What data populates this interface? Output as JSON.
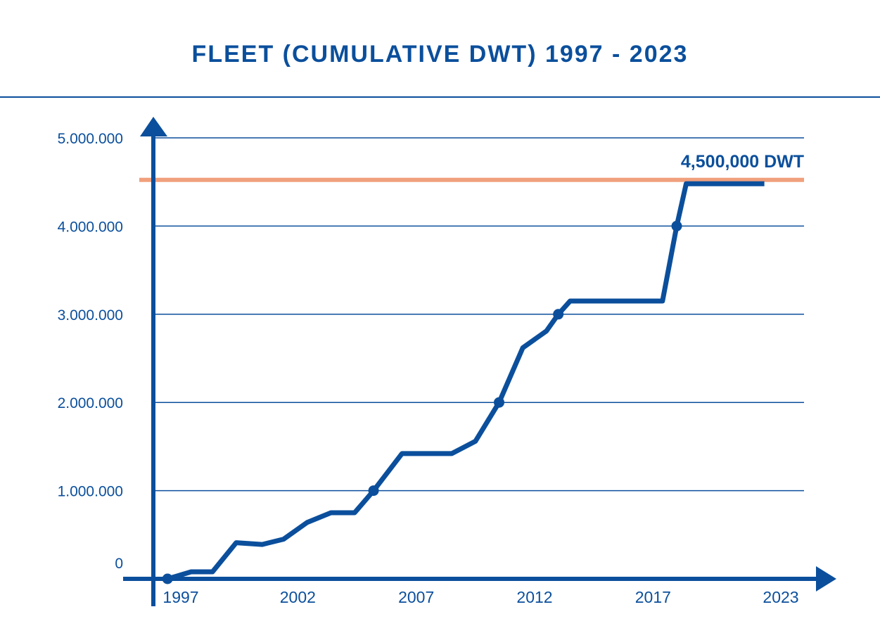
{
  "chart_data": {
    "type": "line",
    "title": "FLEET (CUMULATIVE DWT) 1997 - 2023",
    "xlabel": "",
    "ylabel": "",
    "xlim": [
      1996,
      2023
    ],
    "ylim": [
      0,
      5000000
    ],
    "y_ticks": [
      {
        "value": 0,
        "label": "0"
      },
      {
        "value": 1000000,
        "label": "1.000.000"
      },
      {
        "value": 2000000,
        "label": "2.000.000"
      },
      {
        "value": 3000000,
        "label": "3.000.000"
      },
      {
        "value": 4000000,
        "label": "4.000.000"
      },
      {
        "value": 5000000,
        "label": "5.000.000"
      }
    ],
    "x_ticks": [
      {
        "value": 1997,
        "label": "1997"
      },
      {
        "value": 2002,
        "label": "2002"
      },
      {
        "value": 2007,
        "label": "2007"
      },
      {
        "value": 2012,
        "label": "2012"
      },
      {
        "value": 2017,
        "label": "2017"
      },
      {
        "value": 2023,
        "label": "2023"
      }
    ],
    "grid": true,
    "series": [
      {
        "color": "#0b4f9c",
        "points": [
          {
            "x": 1996.5,
            "y": 0
          },
          {
            "x": 1997.5,
            "y": 80000
          },
          {
            "x": 1998.4,
            "y": 80000
          },
          {
            "x": 1999.4,
            "y": 410000
          },
          {
            "x": 2000.5,
            "y": 390000
          },
          {
            "x": 2001.4,
            "y": 450000
          },
          {
            "x": 2002.4,
            "y": 640000
          },
          {
            "x": 2003.4,
            "y": 750000
          },
          {
            "x": 2004.4,
            "y": 750000
          },
          {
            "x": 2005.2,
            "y": 1000000
          },
          {
            "x": 2006.4,
            "y": 1420000
          },
          {
            "x": 2008.5,
            "y": 1420000
          },
          {
            "x": 2009.5,
            "y": 1560000
          },
          {
            "x": 2010.5,
            "y": 2000000
          },
          {
            "x": 2011.5,
            "y": 2620000
          },
          {
            "x": 2012.5,
            "y": 2810000
          },
          {
            "x": 2013.0,
            "y": 3000000
          },
          {
            "x": 2013.5,
            "y": 3150000
          },
          {
            "x": 2017.4,
            "y": 3150000
          },
          {
            "x": 2018.0,
            "y": 4000000
          },
          {
            "x": 2018.4,
            "y": 4480000
          },
          {
            "x": 2021.7,
            "y": 4480000
          }
        ],
        "markers": [
          {
            "x": 1996.5,
            "y": 0
          },
          {
            "x": 2005.2,
            "y": 1000000
          },
          {
            "x": 2010.5,
            "y": 2000000
          },
          {
            "x": 2013.0,
            "y": 3000000
          },
          {
            "x": 2018.0,
            "y": 4000000
          }
        ]
      }
    ],
    "reference_line": {
      "value": 4500000,
      "label": "4,500,000 DWT",
      "color": "#f0a07c"
    }
  }
}
